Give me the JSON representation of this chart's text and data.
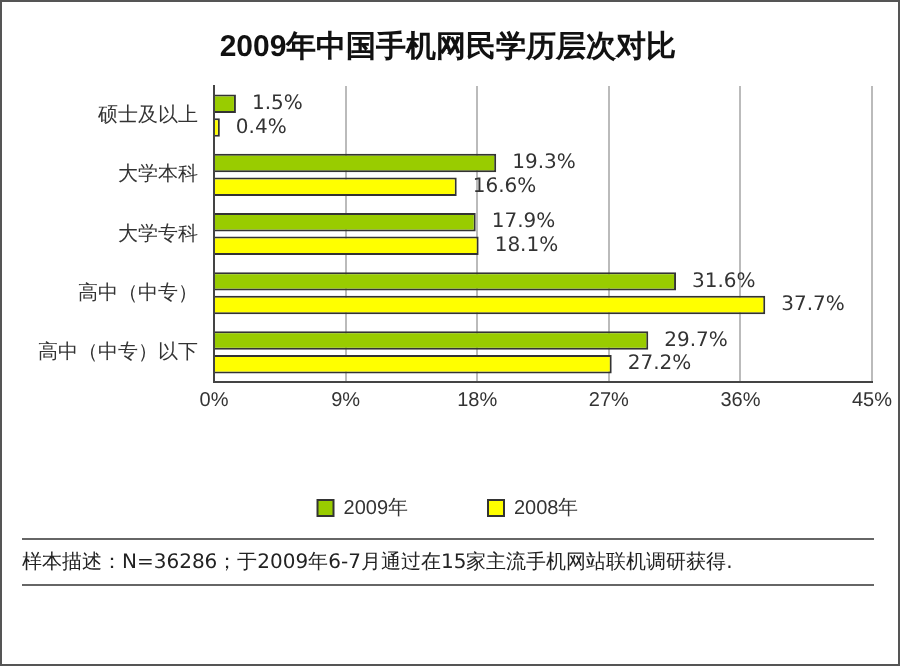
{
  "chart_data": {
    "type": "bar",
    "orientation": "horizontal",
    "title": "2009年中国手机网民学历层次对比",
    "categories": [
      "硕士及以上",
      "大学本科",
      "大学专科",
      "高中（中专）",
      "高中（中专）以下"
    ],
    "series": [
      {
        "name": "2009年",
        "color": "#99cc00",
        "values": [
          1.5,
          19.3,
          17.9,
          31.6,
          29.7
        ],
        "value_labels": [
          "1.5%",
          "19.3%",
          "17.9%",
          "31.6%",
          "29.7%"
        ]
      },
      {
        "name": "2008年",
        "color": "#ffff00",
        "values": [
          0.4,
          16.6,
          18.1,
          37.7,
          27.2
        ],
        "value_labels": [
          "0.4%",
          "16.6%",
          "18.1%",
          "37.7%",
          "27.2%"
        ]
      }
    ],
    "xlim": [
      0,
      45
    ],
    "xticks": [
      {
        "value": 0,
        "label": "0%"
      },
      {
        "value": 9,
        "label": "9%"
      },
      {
        "value": 18,
        "label": "18%"
      },
      {
        "value": 27,
        "label": "27%"
      },
      {
        "value": 36,
        "label": "36%"
      },
      {
        "value": 45,
        "label": "45%"
      }
    ],
    "grid": "x",
    "legend": "bottom",
    "annotations": [
      "样本描述：N=36286；于2009年6-7月通过在15家主流手机网站联机调研获得."
    ]
  }
}
